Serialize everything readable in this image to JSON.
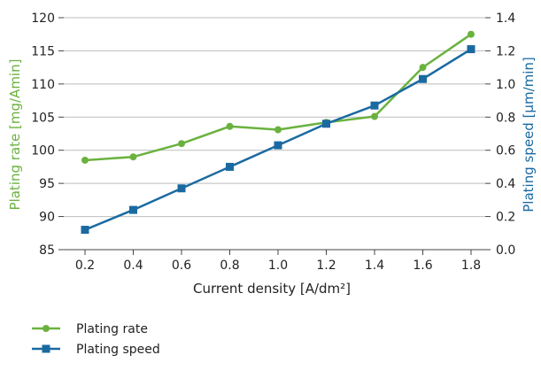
{
  "chart_data": {
    "type": "line",
    "title": "",
    "xlabel": "Current density [A/dm²]",
    "ylabel": "Plating rate [mg/Amin]",
    "y2label": "Plating speed [µm/min]",
    "x": [
      0.2,
      0.4,
      0.6,
      0.8,
      1.0,
      1.2,
      1.4,
      1.6,
      1.8
    ],
    "x_tick_labels": [
      "0.2",
      "0.4",
      "0.6",
      "0.8",
      "1.0",
      "1.2",
      "1.4",
      "1.6",
      "1.8"
    ],
    "ylim": [
      85,
      120
    ],
    "y_ticks": [
      85,
      90,
      95,
      100,
      105,
      110,
      115,
      120
    ],
    "y_tick_labels": [
      "85",
      "90",
      "95",
      "100",
      "105",
      "110",
      "115",
      "120"
    ],
    "y2lim": [
      0.0,
      1.4
    ],
    "y2_ticks": [
      0.0,
      0.2,
      0.4,
      0.6,
      0.8,
      1.0,
      1.2,
      1.4
    ],
    "y2_tick_labels": [
      "0.0",
      "0.2",
      "0.4",
      "0.6",
      "0.8",
      "1.0",
      "1.2",
      "1.4"
    ],
    "grid": "horizontal",
    "legend_position": "bottom-left",
    "series": [
      {
        "name": "Plating rate",
        "axis": "left",
        "color": "#6ab23f",
        "marker": "circle",
        "values": [
          98.5,
          99.0,
          101.0,
          103.6,
          103.1,
          104.2,
          105.1,
          112.5,
          117.5
        ]
      },
      {
        "name": "Plating speed",
        "axis": "right",
        "color": "#1a6aa1",
        "marker": "square",
        "values": [
          0.12,
          0.24,
          0.37,
          0.5,
          0.63,
          0.76,
          0.87,
          1.03,
          1.21
        ]
      }
    ]
  }
}
